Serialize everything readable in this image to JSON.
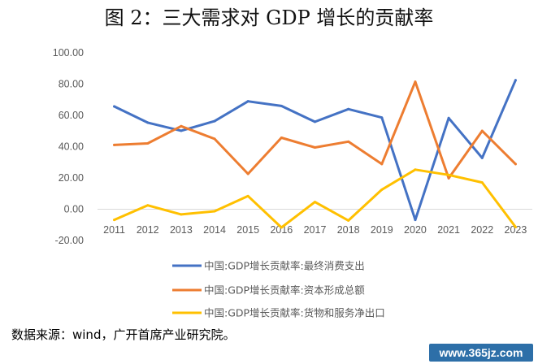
{
  "title": "图 2：三大需求对 GDP 增长的贡献率",
  "source": "数据来源：wind，广开首席产业研究院。",
  "watermark": "www.365jz.com",
  "chart_data": {
    "type": "line",
    "title": "图 2：三大需求对 GDP 增长的贡献率",
    "xlabel": "",
    "ylabel": "",
    "ylim": [
      -20,
      100
    ],
    "yticks": [
      "100.00",
      "80.00",
      "60.00",
      "40.00",
      "20.00",
      "0.00",
      "-20.00"
    ],
    "grid": false,
    "legend_position": "bottom",
    "x": [
      "2011",
      "2012",
      "2013",
      "2014",
      "2015",
      "2016",
      "2017",
      "2018",
      "2019",
      "2020",
      "2021",
      "2022",
      "2023"
    ],
    "series": [
      {
        "name": "中国:GDP增长贡献率:最终消费支出",
        "color": "#4472C4",
        "values": [
          65.7,
          55.4,
          50.2,
          56.3,
          69.0,
          66.0,
          55.9,
          64.0,
          58.6,
          -6.8,
          58.3,
          32.8,
          82.5
        ]
      },
      {
        "name": "中国:GDP增长贡献率:资本形成总额",
        "color": "#ED7D31",
        "values": [
          41.1,
          42.1,
          53.1,
          45.0,
          22.6,
          45.7,
          39.5,
          43.2,
          28.9,
          81.5,
          19.8,
          50.1,
          28.9
        ]
      },
      {
        "name": "中国:GDP增长贡献率:货物和服务净出口",
        "color": "#FFC000",
        "values": [
          -6.8,
          2.5,
          -3.3,
          -1.3,
          8.4,
          -11.7,
          4.6,
          -7.2,
          12.5,
          25.3,
          21.9,
          17.1,
          -11.4
        ]
      }
    ]
  }
}
